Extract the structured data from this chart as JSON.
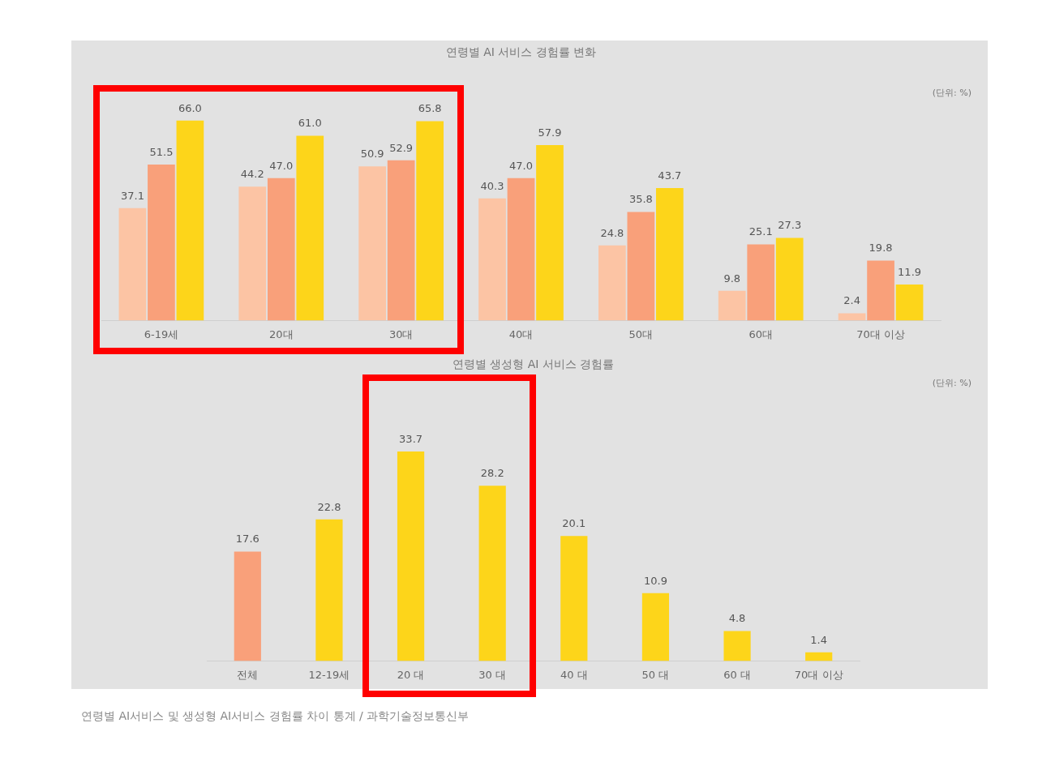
{
  "chart_data": [
    {
      "type": "bar",
      "title": "연령별 AI 서비스 경험률 변화",
      "annotations": [
        "(단위: %)"
      ],
      "categories": [
        "6-19세",
        "20대",
        "30대",
        "40대",
        "50대",
        "60대",
        "70대 이상"
      ],
      "series": [
        {
          "color": "#fcc4a4",
          "values": [
            37.1,
            44.2,
            50.9,
            40.3,
            24.8,
            9.8,
            2.4
          ],
          "value_labels": [
            "37.1",
            "44.2",
            "50.9",
            "40.3",
            "24.8",
            "9.8",
            "2.4"
          ]
        },
        {
          "color": "#f9a07a",
          "values": [
            51.5,
            47.0,
            52.9,
            47.0,
            35.8,
            25.1,
            19.8
          ],
          "value_labels": [
            "51.5",
            "47.0",
            "52.9",
            "47.0",
            "35.8",
            "25.1",
            "19.8"
          ]
        },
        {
          "color": "#fdd51a",
          "values": [
            66.0,
            61.0,
            65.8,
            57.9,
            43.7,
            27.3,
            11.9
          ],
          "value_labels": [
            "66.0",
            "61.0",
            "65.8",
            "57.9",
            "43.7",
            "27.3",
            "11.9"
          ]
        }
      ],
      "grid": false,
      "legend": false,
      "tick_labels": "x"
    },
    {
      "type": "bar",
      "title": "연령별 생성형 AI 서비스 경험률",
      "annotations": [
        "(단위: %)",
        "연령별 AI서비스 및 생성형 AI서비스 경험률 차이 통계 / 과학기술정보통신부"
      ],
      "categories": [
        "전체",
        "12-19세",
        "20 대",
        "30 대",
        "40 대",
        "50 대",
        "60 대",
        "70대 이상"
      ],
      "values": [
        17.6,
        22.8,
        33.7,
        28.2,
        20.1,
        10.9,
        4.8,
        1.4
      ],
      "colors": [
        "#f9a07a",
        "#fdd51a",
        "#fdd51a",
        "#fdd51a",
        "#fdd51a",
        "#fdd51a",
        "#fdd51a",
        "#fdd51a"
      ],
      "data_labels": true,
      "grid": false,
      "legend": false,
      "tick_labels": "x"
    }
  ]
}
